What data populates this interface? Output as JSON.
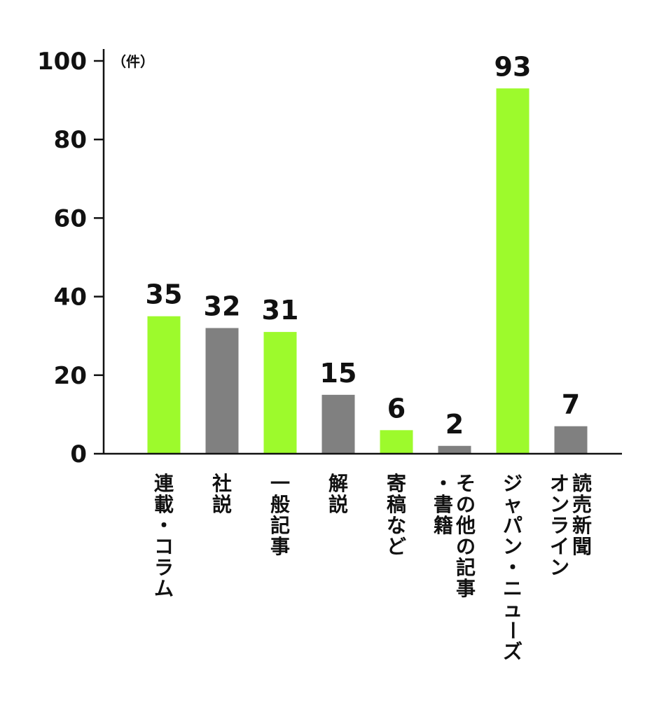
{
  "chart_data": {
    "type": "bar",
    "ylabel": "（件）",
    "ylim": [
      0,
      100
    ],
    "yticks": [
      0,
      20,
      40,
      60,
      80,
      100
    ],
    "categories": [
      [
        "連載・コラム"
      ],
      [
        "社説"
      ],
      [
        "一般記事"
      ],
      [
        "解説"
      ],
      [
        "寄稿など"
      ],
      [
        "その他の記事",
        "・書籍"
      ],
      [
        "ジャパン・ニューズ"
      ],
      [
        "読売新聞",
        "オンライン"
      ]
    ],
    "values": [
      35,
      32,
      31,
      15,
      6,
      2,
      93,
      7
    ],
    "bar_colors": [
      "#9dfa2c",
      "#808080",
      "#9dfa2c",
      "#808080",
      "#9dfa2c",
      "#808080",
      "#9dfa2c",
      "#808080"
    ],
    "grid": false,
    "legend": "none"
  }
}
